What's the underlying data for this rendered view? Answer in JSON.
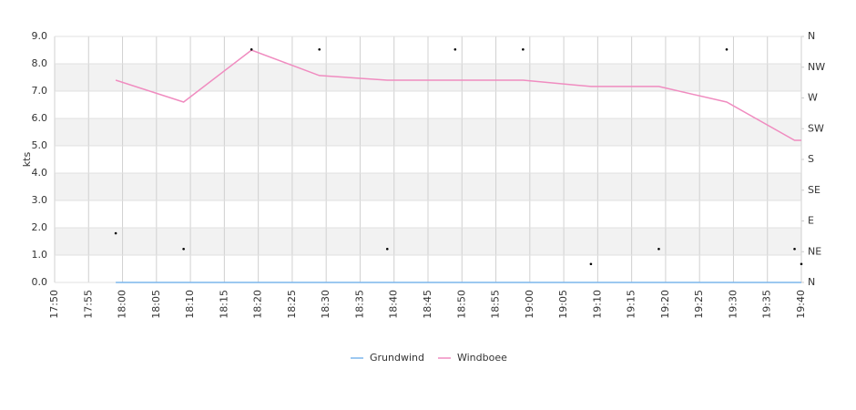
{
  "chart_data": {
    "type": "line",
    "y_label": "kts",
    "x": [
      "17:59",
      "18:09",
      "18:19",
      "18:29",
      "18:39",
      "18:49",
      "18:59",
      "19:09",
      "19:19",
      "19:29",
      "19:39",
      "19:40"
    ],
    "series": [
      {
        "name": "Grundwind",
        "color": "#7cb5ec",
        "values": [
          0,
          0,
          0,
          0,
          0,
          0,
          0,
          0,
          0,
          0,
          0,
          0
        ]
      },
      {
        "name": "Windboee",
        "color": "#f08cc0",
        "values": [
          7.4,
          6.6,
          8.5,
          7.57,
          7.4,
          7.4,
          7.4,
          7.17,
          7.17,
          6.6,
          5.2,
          5.2
        ]
      },
      {
        "type": "scatter",
        "axis": "y2",
        "color": "#000000",
        "values": [
          72,
          49,
          341,
          341,
          49,
          341,
          341,
          27,
          49,
          341,
          49,
          27
        ]
      }
    ],
    "xlim": [
      "17:50",
      "19:40"
    ],
    "xticks": [
      "17:50",
      "17:55",
      "18:00",
      "18:05",
      "18:10",
      "18:15",
      "18:20",
      "18:25",
      "18:30",
      "18:35",
      "18:40",
      "18:45",
      "18:50",
      "18:55",
      "19:00",
      "19:05",
      "19:10",
      "19:15",
      "19:20",
      "19:25",
      "19:30",
      "19:35",
      "19:40"
    ],
    "ylim": [
      0,
      9
    ],
    "yticks": [
      {
        "value": 0,
        "label": "0.0"
      },
      {
        "value": 1,
        "label": "1.0"
      },
      {
        "value": 2,
        "label": "2.0"
      },
      {
        "value": 3,
        "label": "3.0"
      },
      {
        "value": 4,
        "label": "4.0"
      },
      {
        "value": 5,
        "label": "5.0"
      },
      {
        "value": 6,
        "label": "6.0"
      },
      {
        "value": 7,
        "label": "7.0"
      },
      {
        "value": 8,
        "label": "8.0"
      },
      {
        "value": 9,
        "label": "9.0"
      }
    ],
    "y2lim": [
      0,
      360
    ],
    "y2ticks": [
      {
        "value": 0,
        "label": "N"
      },
      {
        "value": 45,
        "label": "NE"
      },
      {
        "value": 90,
        "label": "E"
      },
      {
        "value": 135,
        "label": "SE"
      },
      {
        "value": 180,
        "label": "S"
      },
      {
        "value": 225,
        "label": "SW"
      },
      {
        "value": 270,
        "label": "W"
      },
      {
        "value": 315,
        "label": "NW"
      },
      {
        "value": 360,
        "label": "N"
      }
    ],
    "grid": true,
    "legend": "bottom"
  }
}
